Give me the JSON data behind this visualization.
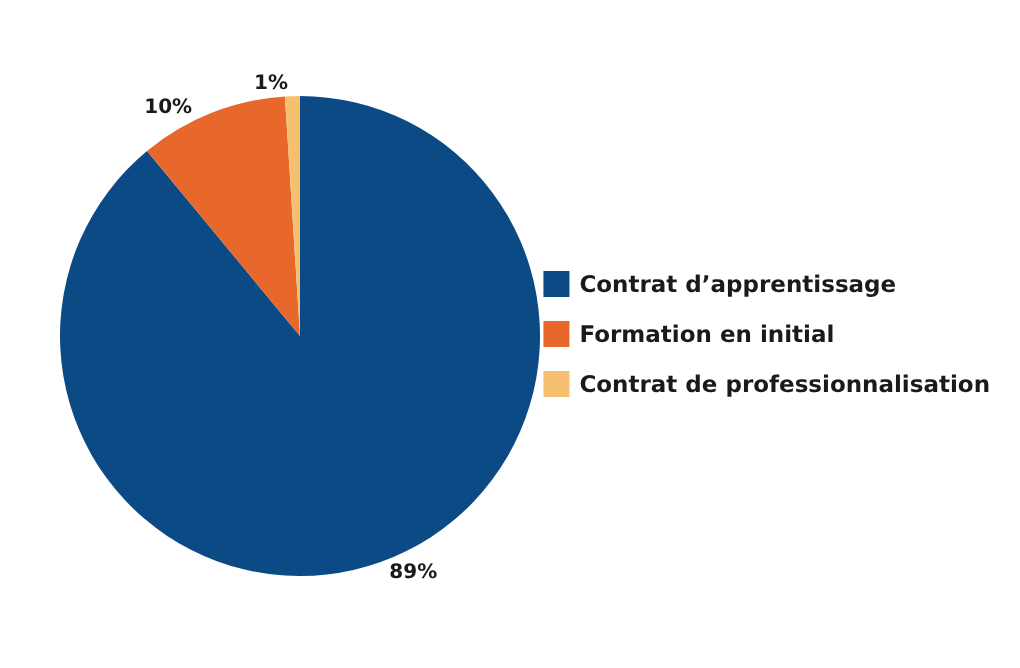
{
  "chart_data": {
    "type": "pie",
    "categories": [
      "Contrat d’apprentissage",
      "Formation en initial",
      "Contrat de professionnalisation"
    ],
    "values": [
      89,
      10,
      1
    ],
    "value_labels": [
      "89%",
      "10%",
      "1%"
    ],
    "colors": [
      "#0c4a85",
      "#e8672b",
      "#f6c070"
    ],
    "legend": "right"
  }
}
